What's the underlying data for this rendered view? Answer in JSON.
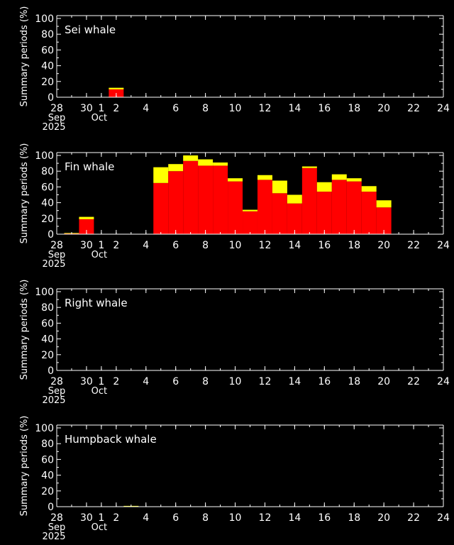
{
  "chart_data": [
    {
      "type": "bar",
      "stacked": true,
      "title": "Sei whale",
      "ylabel": "Summary periods (%)",
      "ylim": [
        0,
        100
      ],
      "y_ticks": [
        "0",
        "20",
        "40",
        "60",
        "80",
        "100"
      ],
      "y_tick_values": [
        0,
        20,
        40,
        60,
        80,
        100
      ],
      "xlim": [
        "2025-09-28",
        "2025-10-24"
      ],
      "x_tick_labels": [
        "28",
        "30",
        "1",
        "2",
        "4",
        "6",
        "8",
        "10",
        "12",
        "14",
        "16",
        "18",
        "20",
        "22",
        "24"
      ],
      "x_tick_dates": [
        "2025-09-28",
        "2025-09-30",
        "2025-10-01",
        "2025-10-02",
        "2025-10-04",
        "2025-10-06",
        "2025-10-08",
        "2025-10-10",
        "2025-10-12",
        "2025-10-14",
        "2025-10-16",
        "2025-10-18",
        "2025-10-20",
        "2025-10-22",
        "2025-10-24"
      ],
      "date_labels": [
        "Sep",
        "Oct",
        "2025"
      ],
      "series_colors": [
        "#ff0000",
        "#ffff00"
      ],
      "dates": [
        "2025-10-02"
      ],
      "series": [
        {
          "values": [
            10
          ]
        },
        {
          "values": [
            2
          ]
        }
      ]
    },
    {
      "type": "bar",
      "stacked": true,
      "title": "Fin whale",
      "ylabel": "Summary periods (%)",
      "ylim": [
        0,
        100
      ],
      "y_ticks": [
        "0",
        "20",
        "40",
        "60",
        "80",
        "100"
      ],
      "y_tick_values": [
        0,
        20,
        40,
        60,
        80,
        100
      ],
      "xlim": [
        "2025-09-28",
        "2025-10-24"
      ],
      "x_tick_labels": [
        "28",
        "30",
        "1",
        "2",
        "4",
        "6",
        "8",
        "10",
        "12",
        "14",
        "16",
        "18",
        "20",
        "22",
        "24"
      ],
      "x_tick_dates": [
        "2025-09-28",
        "2025-09-30",
        "2025-10-01",
        "2025-10-02",
        "2025-10-04",
        "2025-10-06",
        "2025-10-08",
        "2025-10-10",
        "2025-10-12",
        "2025-10-14",
        "2025-10-16",
        "2025-10-18",
        "2025-10-20",
        "2025-10-22",
        "2025-10-24"
      ],
      "date_labels": [
        "Sep",
        "Oct",
        "2025"
      ],
      "series_colors": [
        "#ff0000",
        "#ffff00"
      ],
      "dates": [
        "2025-09-29",
        "2025-09-30",
        "2025-10-05",
        "2025-10-06",
        "2025-10-07",
        "2025-10-08",
        "2025-10-09",
        "2025-10-10",
        "2025-10-11",
        "2025-10-12",
        "2025-10-13",
        "2025-10-14",
        "2025-10-15",
        "2025-10-16",
        "2025-10-17",
        "2025-10-18",
        "2025-10-19",
        "2025-10-20"
      ],
      "series": [
        {
          "values": [
            1,
            19,
            65,
            80,
            93,
            87,
            87,
            67,
            29,
            69,
            52,
            39,
            84,
            54,
            69,
            67,
            54,
            34
          ]
        },
        {
          "values": [
            0.5,
            3,
            20,
            9,
            7,
            8,
            4,
            4,
            2,
            6,
            16,
            11,
            2,
            12,
            7,
            4,
            7,
            9
          ]
        }
      ]
    },
    {
      "type": "bar",
      "stacked": true,
      "title": "Right whale",
      "ylabel": "Summary periods (%)",
      "ylim": [
        0,
        100
      ],
      "y_ticks": [
        "0",
        "20",
        "40",
        "60",
        "80",
        "100"
      ],
      "y_tick_values": [
        0,
        20,
        40,
        60,
        80,
        100
      ],
      "xlim": [
        "2025-09-28",
        "2025-10-24"
      ],
      "x_tick_labels": [
        "28",
        "30",
        "1",
        "2",
        "4",
        "6",
        "8",
        "10",
        "12",
        "14",
        "16",
        "18",
        "20",
        "22",
        "24"
      ],
      "x_tick_dates": [
        "2025-09-28",
        "2025-09-30",
        "2025-10-01",
        "2025-10-02",
        "2025-10-04",
        "2025-10-06",
        "2025-10-08",
        "2025-10-10",
        "2025-10-12",
        "2025-10-14",
        "2025-10-16",
        "2025-10-18",
        "2025-10-20",
        "2025-10-22",
        "2025-10-24"
      ],
      "date_labels": [
        "Sep",
        "Oct",
        "2025"
      ],
      "series_colors": [
        "#ff0000",
        "#ffff00"
      ],
      "dates": [],
      "series": [
        {
          "values": []
        },
        {
          "values": []
        }
      ]
    },
    {
      "type": "bar",
      "stacked": true,
      "title": "Humpback whale",
      "ylabel": "Summary periods (%)",
      "ylim": [
        0,
        100
      ],
      "y_ticks": [
        "0",
        "20",
        "40",
        "60",
        "80",
        "100"
      ],
      "y_tick_values": [
        0,
        20,
        40,
        60,
        80,
        100
      ],
      "xlim": [
        "2025-09-28",
        "2025-10-24"
      ],
      "x_tick_labels": [
        "28",
        "30",
        "1",
        "2",
        "4",
        "6",
        "8",
        "10",
        "12",
        "14",
        "16",
        "18",
        "20",
        "22",
        "24"
      ],
      "x_tick_dates": [
        "2025-09-28",
        "2025-09-30",
        "2025-10-01",
        "2025-10-02",
        "2025-10-04",
        "2025-10-06",
        "2025-10-08",
        "2025-10-10",
        "2025-10-12",
        "2025-10-14",
        "2025-10-16",
        "2025-10-18",
        "2025-10-20",
        "2025-10-22",
        "2025-10-24"
      ],
      "date_labels": [
        "Sep",
        "Oct",
        "2025"
      ],
      "series_colors": [
        "#ff0000",
        "#ffff00"
      ],
      "dates": [
        "2025-10-03"
      ],
      "series": [
        {
          "values": [
            0
          ]
        },
        {
          "values": [
            1
          ]
        }
      ]
    }
  ]
}
